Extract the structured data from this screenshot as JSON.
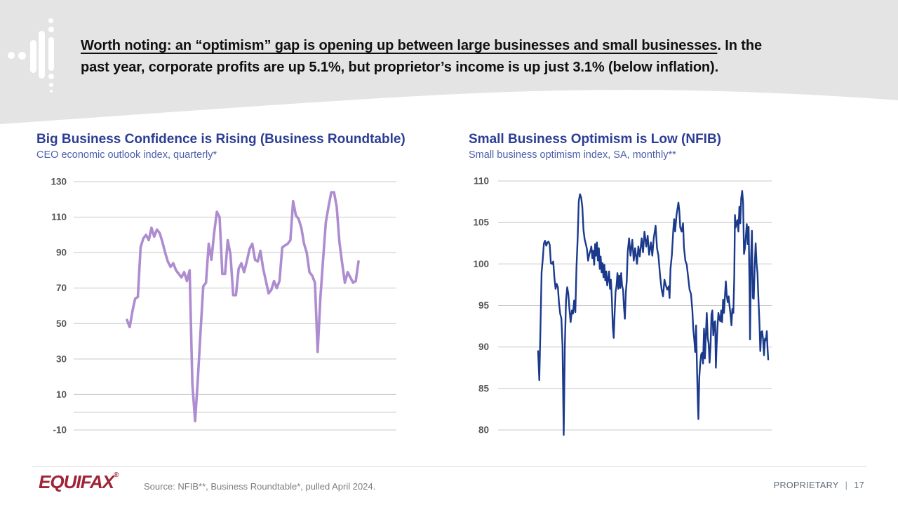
{
  "slide": {
    "headline": {
      "underlined": "Worth noting: an “optimism” gap is opening up between large businesses and small businesses",
      "after_underline": ". In the",
      "line2": "past year, corporate profits are up 5.1%, but proprietor’s income is up just 3.1% (below inflation)."
    },
    "footer": {
      "logo": "EQUIFAX",
      "logo_mark": "®",
      "source": "Source: NFIB**, Business Roundtable*, pulled April 2024.",
      "classification": "PROPRIETARY",
      "separator": "|",
      "page_number": "17"
    },
    "colors": {
      "header_gray": "#e4e4e4",
      "title_navy": "#2d3d93",
      "subtitle_blue": "#4c5fa9",
      "purple_line": "#ad8cd0",
      "navy_line": "#1b3a8c",
      "gridline": "#c8c8c8",
      "tick_label": "#57575a",
      "equifax_red": "#a02438",
      "footer_text_gray": "#7d7d7d",
      "proprietary_gray": "#5c6a77"
    }
  },
  "chart_data": [
    {
      "type": "line",
      "title": "Big Business Confidence is Rising (Business Roundtable)",
      "subtitle": "CEO economic outlook index, quarterly*",
      "ylabel": "",
      "xlabel": "",
      "ylim": [
        -10,
        130
      ],
      "y_ticks": [
        130,
        110,
        90,
        70,
        50,
        30,
        10,
        -10
      ],
      "zero_gridline": 0,
      "grid": true,
      "legend": "none",
      "line_color": "#ad8cd0",
      "values": [
        52,
        48,
        57,
        64,
        65,
        93,
        98,
        100,
        97,
        104,
        99,
        103,
        101,
        96,
        90,
        85,
        82,
        84,
        80,
        78,
        76,
        79,
        74,
        80,
        16,
        -5,
        18,
        45,
        71,
        73,
        95,
        86,
        101,
        113,
        110,
        78,
        78,
        97,
        89,
        66,
        66,
        81,
        84,
        79,
        85,
        92,
        95,
        86,
        85,
        91,
        81,
        74,
        67,
        69,
        74,
        70,
        74,
        93,
        94,
        95,
        97,
        119,
        111,
        109,
        104,
        95,
        90,
        79,
        77,
        73,
        34,
        64,
        86,
        107,
        116,
        124,
        124,
        116,
        96,
        84,
        73,
        79,
        76,
        73,
        74,
        85
      ]
    },
    {
      "type": "line",
      "title": "Small Business Optimism is Low (NFIB)",
      "subtitle": "Small business optimism index, SA, monthly**",
      "ylabel": "",
      "xlabel": "",
      "ylim": [
        80,
        110
      ],
      "y_ticks": [
        110,
        105,
        100,
        95,
        90,
        85,
        80
      ],
      "grid": true,
      "legend": "none",
      "line_color": "#1b3a8c",
      "points": [
        [
          1974.75,
          89.5
        ],
        [
          1975.0,
          86.0
        ],
        [
          1975.25,
          92.0
        ],
        [
          1975.5,
          99.0
        ],
        [
          1975.75,
          100.5
        ],
        [
          1976.0,
          102.5
        ],
        [
          1976.25,
          102.8
        ],
        [
          1976.5,
          102.2
        ],
        [
          1976.75,
          102.6
        ],
        [
          1977.0,
          102.7
        ],
        [
          1977.25,
          102.3
        ],
        [
          1977.5,
          100.1
        ],
        [
          1977.75,
          100.0
        ],
        [
          1978.0,
          100.3
        ],
        [
          1978.25,
          98.4
        ],
        [
          1978.5,
          97.0
        ],
        [
          1978.75,
          97.6
        ],
        [
          1979.0,
          97.2
        ],
        [
          1979.25,
          95.3
        ],
        [
          1979.5,
          94.0
        ],
        [
          1979.75,
          93.4
        ],
        [
          1980.0,
          90.1
        ],
        [
          1980.25,
          79.4
        ],
        [
          1980.5,
          90.0
        ],
        [
          1980.75,
          95.6
        ],
        [
          1981.0,
          97.2
        ],
        [
          1981.25,
          96.4
        ],
        [
          1981.5,
          94.4
        ],
        [
          1981.75,
          93.0
        ],
        [
          1982.0,
          94.4
        ],
        [
          1982.25,
          94.0
        ],
        [
          1982.5,
          95.6
        ],
        [
          1982.75,
          94.2
        ],
        [
          1983.0,
          99.6
        ],
        [
          1983.25,
          103.1
        ],
        [
          1983.5,
          107.6
        ],
        [
          1983.75,
          108.4
        ],
        [
          1984.0,
          108.0
        ],
        [
          1984.25,
          106.9
        ],
        [
          1984.5,
          104.1
        ],
        [
          1984.75,
          103.0
        ],
        [
          1985.0,
          102.4
        ],
        [
          1985.25,
          101.8
        ],
        [
          1985.5,
          100.4
        ],
        [
          1985.75,
          101.2
        ],
        [
          1986.0,
          101.6
        ],
        [
          1986.2,
          102.1
        ],
        [
          1986.4,
          100.7
        ],
        [
          1986.6,
          101.6
        ],
        [
          1986.8,
          99.9
        ],
        [
          1987.0,
          102.4
        ],
        [
          1987.2,
          101.0
        ],
        [
          1987.4,
          102.6
        ],
        [
          1987.6,
          100.4
        ],
        [
          1987.8,
          101.9
        ],
        [
          1988.0,
          99.4
        ],
        [
          1988.2,
          100.9
        ],
        [
          1988.4,
          99.0
        ],
        [
          1988.6,
          100.1
        ],
        [
          1988.8,
          98.4
        ],
        [
          1989.0,
          99.9
        ],
        [
          1989.2,
          98.0
        ],
        [
          1989.4,
          99.1
        ],
        [
          1989.6,
          97.4
        ],
        [
          1989.8,
          98.1
        ],
        [
          1990.0,
          99.1
        ],
        [
          1990.2,
          97.0
        ],
        [
          1990.4,
          98.1
        ],
        [
          1990.6,
          95.9
        ],
        [
          1990.8,
          92.4
        ],
        [
          1991.0,
          91.1
        ],
        [
          1991.2,
          94.1
        ],
        [
          1991.4,
          96.6
        ],
        [
          1991.6,
          97.4
        ],
        [
          1991.8,
          98.9
        ],
        [
          1992.0,
          97.0
        ],
        [
          1992.2,
          98.6
        ],
        [
          1992.4,
          97.1
        ],
        [
          1992.6,
          98.9
        ],
        [
          1992.8,
          97.4
        ],
        [
          1993.0,
          96.9
        ],
        [
          1993.2,
          94.8
        ],
        [
          1993.4,
          93.4
        ],
        [
          1993.6,
          96.5
        ],
        [
          1993.8,
          98.0
        ],
        [
          1994.0,
          101.4
        ],
        [
          1994.3,
          103.1
        ],
        [
          1994.6,
          101.0
        ],
        [
          1995.0,
          102.9
        ],
        [
          1995.3,
          100.4
        ],
        [
          1995.6,
          101.9
        ],
        [
          1996.0,
          100.0
        ],
        [
          1996.3,
          102.1
        ],
        [
          1996.6,
          100.9
        ],
        [
          1997.0,
          103.1
        ],
        [
          1997.3,
          101.4
        ],
        [
          1997.6,
          103.9
        ],
        [
          1998.0,
          102.1
        ],
        [
          1998.3,
          103.4
        ],
        [
          1998.6,
          101.1
        ],
        [
          1999.0,
          102.6
        ],
        [
          1999.3,
          101.0
        ],
        [
          1999.6,
          103.1
        ],
        [
          2000.0,
          104.6
        ],
        [
          2000.3,
          101.9
        ],
        [
          2000.6,
          101.0
        ],
        [
          2001.0,
          98.4
        ],
        [
          2001.3,
          96.9
        ],
        [
          2001.6,
          96.1
        ],
        [
          2001.9,
          98.1
        ],
        [
          2002.2,
          97.4
        ],
        [
          2002.5,
          96.9
        ],
        [
          2002.8,
          97.3
        ],
        [
          2003.0,
          95.9
        ],
        [
          2003.2,
          99.4
        ],
        [
          2003.5,
          101.1
        ],
        [
          2003.8,
          104.1
        ],
        [
          2004.0,
          105.4
        ],
        [
          2004.2,
          103.9
        ],
        [
          2004.5,
          105.9
        ],
        [
          2004.9,
          107.4
        ],
        [
          2005.1,
          106.4
        ],
        [
          2005.3,
          104.4
        ],
        [
          2005.6,
          103.9
        ],
        [
          2005.9,
          104.9
        ],
        [
          2006.1,
          102.0
        ],
        [
          2006.4,
          100.4
        ],
        [
          2006.7,
          99.9
        ],
        [
          2007.0,
          98.4
        ],
        [
          2007.3,
          96.9
        ],
        [
          2007.6,
          96.4
        ],
        [
          2007.9,
          94.4
        ],
        [
          2008.1,
          92.1
        ],
        [
          2008.3,
          91.0
        ],
        [
          2008.5,
          89.4
        ],
        [
          2008.7,
          92.6
        ],
        [
          2008.9,
          87.4
        ],
        [
          2009.1,
          83.0
        ],
        [
          2009.2,
          81.3
        ],
        [
          2009.4,
          86.4
        ],
        [
          2009.6,
          88.1
        ],
        [
          2009.8,
          89.1
        ],
        [
          2010.0,
          89.3
        ],
        [
          2010.2,
          88.0
        ],
        [
          2010.4,
          92.2
        ],
        [
          2010.6,
          88.6
        ],
        [
          2010.8,
          91.4
        ],
        [
          2011.0,
          94.1
        ],
        [
          2011.2,
          91.1
        ],
        [
          2011.4,
          90.4
        ],
        [
          2011.6,
          88.1
        ],
        [
          2011.8,
          90.1
        ],
        [
          2012.0,
          93.9
        ],
        [
          2012.2,
          94.4
        ],
        [
          2012.4,
          91.4
        ],
        [
          2012.6,
          92.9
        ],
        [
          2012.8,
          93.1
        ],
        [
          2012.95,
          87.5
        ],
        [
          2013.1,
          90.0
        ],
        [
          2013.3,
          92.4
        ],
        [
          2013.5,
          94.1
        ],
        [
          2013.7,
          93.4
        ],
        [
          2013.9,
          93.1
        ],
        [
          2014.1,
          94.4
        ],
        [
          2014.3,
          93.0
        ],
        [
          2014.5,
          95.7
        ],
        [
          2014.7,
          94.1
        ],
        [
          2014.9,
          96.1
        ],
        [
          2015.1,
          97.9
        ],
        [
          2015.3,
          96.1
        ],
        [
          2015.5,
          95.4
        ],
        [
          2015.7,
          96.1
        ],
        [
          2015.9,
          94.9
        ],
        [
          2016.1,
          93.9
        ],
        [
          2016.3,
          92.6
        ],
        [
          2016.5,
          94.6
        ],
        [
          2016.7,
          94.1
        ],
        [
          2016.9,
          98.4
        ],
        [
          2017.05,
          105.9
        ],
        [
          2017.2,
          104.4
        ],
        [
          2017.4,
          104.9
        ],
        [
          2017.6,
          105.3
        ],
        [
          2017.8,
          103.9
        ],
        [
          2018.0,
          106.9
        ],
        [
          2018.2,
          104.9
        ],
        [
          2018.4,
          107.9
        ],
        [
          2018.6,
          108.8
        ],
        [
          2018.8,
          107.4
        ],
        [
          2019.0,
          101.2
        ],
        [
          2019.2,
          101.9
        ],
        [
          2019.4,
          103.4
        ],
        [
          2019.6,
          104.8
        ],
        [
          2019.8,
          102.4
        ],
        [
          2020.0,
          104.5
        ],
        [
          2020.2,
          96.4
        ],
        [
          2020.3,
          90.9
        ],
        [
          2020.5,
          100.6
        ],
        [
          2020.7,
          104.0
        ],
        [
          2020.9,
          95.9
        ],
        [
          2021.1,
          95.8
        ],
        [
          2021.3,
          99.8
        ],
        [
          2021.5,
          102.5
        ],
        [
          2021.7,
          100.1
        ],
        [
          2021.9,
          98.9
        ],
        [
          2022.1,
          95.7
        ],
        [
          2022.3,
          93.2
        ],
        [
          2022.5,
          89.5
        ],
        [
          2022.7,
          91.8
        ],
        [
          2022.9,
          91.9
        ],
        [
          2023.1,
          90.9
        ],
        [
          2023.3,
          89.0
        ],
        [
          2023.5,
          91.0
        ],
        [
          2023.7,
          90.8
        ],
        [
          2023.9,
          91.9
        ],
        [
          2024.05,
          89.9
        ],
        [
          2024.2,
          88.5
        ]
      ]
    }
  ]
}
